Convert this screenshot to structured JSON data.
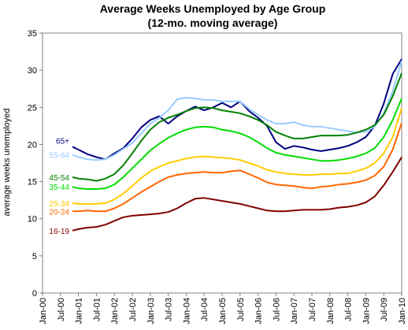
{
  "chart_data": {
    "type": "line",
    "title": "Average Weeks Unemployed by Age Group",
    "subtitle": "(12-mo. moving average)",
    "xlabel": "",
    "ylabel": "average weeks unemployed",
    "ylim": [
      0,
      35
    ],
    "yticks": [
      0,
      5,
      10,
      15,
      20,
      25,
      30,
      35
    ],
    "x_start": "2000-01",
    "x_end": "2010-01",
    "xticks": [
      "Jan-00",
      "Jul-00",
      "Jan-01",
      "Jul-01",
      "Jan-02",
      "Jul-02",
      "Jan-03",
      "Jul-03",
      "Jan-04",
      "Jul-04",
      "Jan-05",
      "Jul-05",
      "Jan-06",
      "Jul-06",
      "Jan-07",
      "Jul-07",
      "Jan-08",
      "Jul-08",
      "Jan-09",
      "Jul-09",
      "Jan-10"
    ],
    "grid": false,
    "legend": "inline-left",
    "x": [
      "2000-11",
      "2001-01",
      "2001-04",
      "2001-07",
      "2001-10",
      "2002-01",
      "2002-04",
      "2002-07",
      "2002-10",
      "2003-01",
      "2003-04",
      "2003-07",
      "2003-10",
      "2004-01",
      "2004-04",
      "2004-07",
      "2004-10",
      "2005-01",
      "2005-04",
      "2005-07",
      "2005-10",
      "2006-01",
      "2006-04",
      "2006-07",
      "2006-10",
      "2007-01",
      "2007-04",
      "2007-07",
      "2007-10",
      "2008-01",
      "2008-04",
      "2008-07",
      "2008-10",
      "2009-01",
      "2009-04",
      "2009-07",
      "2009-10",
      "2010-01"
    ],
    "series": [
      {
        "name": "65+",
        "color": "#000080",
        "values": [
          19.7,
          19.3,
          18.7,
          18.3,
          18.0,
          18.8,
          19.5,
          20.8,
          22.3,
          23.3,
          23.8,
          22.8,
          23.8,
          24.5,
          25.1,
          24.6,
          25.0,
          25.6,
          25.0,
          25.8,
          24.5,
          23.6,
          22.5,
          20.3,
          19.4,
          19.8,
          19.6,
          19.3,
          19.1,
          19.3,
          19.5,
          19.8,
          20.3,
          21.0,
          22.5,
          25.5,
          29.5,
          31.5
        ],
        "label_y": 20.5
      },
      {
        "name": "55-64",
        "color": "#99ccff",
        "values": [
          18.6,
          18.3,
          18.0,
          17.9,
          18.0,
          18.6,
          19.4,
          20.2,
          21.5,
          22.8,
          23.6,
          24.6,
          26.1,
          26.3,
          26.2,
          26.0,
          26.0,
          25.8,
          25.8,
          25.8,
          24.8,
          24.0,
          23.3,
          22.8,
          22.8,
          23.0,
          22.6,
          22.4,
          22.4,
          22.2,
          22.0,
          21.8,
          21.6,
          21.7,
          22.4,
          24.2,
          27.2,
          31.3
        ],
        "label_y": 18.6
      },
      {
        "name": "45-54",
        "color": "#008000",
        "values": [
          15.6,
          15.4,
          15.3,
          15.1,
          15.4,
          16.0,
          17.2,
          18.8,
          20.5,
          22.0,
          23.0,
          23.6,
          24.0,
          24.5,
          24.9,
          25.0,
          24.9,
          24.6,
          24.4,
          24.2,
          23.8,
          23.3,
          22.6,
          21.7,
          21.2,
          20.8,
          20.8,
          21.0,
          21.2,
          21.2,
          21.2,
          21.3,
          21.6,
          22.0,
          22.6,
          24.0,
          26.5,
          29.6
        ],
        "label_y": 15.6
      },
      {
        "name": "35-44",
        "color": "#00dd00",
        "values": [
          14.3,
          14.1,
          14.0,
          14.0,
          14.1,
          14.6,
          15.6,
          16.8,
          18.0,
          19.2,
          20.1,
          20.9,
          21.5,
          22.0,
          22.3,
          22.4,
          22.3,
          22.0,
          21.8,
          21.5,
          21.0,
          20.3,
          19.5,
          18.9,
          18.6,
          18.4,
          18.2,
          18.0,
          17.8,
          17.8,
          17.9,
          18.1,
          18.4,
          18.8,
          19.5,
          21.0,
          23.3,
          26.2
        ],
        "label_y": 14.3
      },
      {
        "name": "25-34",
        "color": "#ffcc00",
        "values": [
          12.1,
          12.0,
          12.0,
          12.0,
          12.1,
          12.6,
          13.4,
          14.4,
          15.5,
          16.4,
          17.0,
          17.5,
          17.8,
          18.1,
          18.3,
          18.4,
          18.3,
          18.2,
          18.1,
          17.9,
          17.5,
          17.1,
          16.6,
          16.3,
          16.1,
          16.0,
          15.9,
          15.9,
          16.0,
          16.0,
          16.1,
          16.1,
          16.4,
          16.8,
          17.5,
          18.8,
          21.0,
          24.9
        ],
        "label_y": 12.1
      },
      {
        "name": "20-24",
        "color": "#ff6600",
        "values": [
          11.0,
          11.0,
          11.1,
          11.0,
          11.0,
          11.4,
          12.0,
          12.8,
          13.6,
          14.3,
          15.0,
          15.6,
          15.9,
          16.1,
          16.2,
          16.3,
          16.2,
          16.2,
          16.4,
          16.5,
          16.0,
          15.5,
          14.9,
          14.6,
          14.5,
          14.4,
          14.2,
          14.1,
          14.3,
          14.4,
          14.6,
          14.7,
          14.9,
          15.2,
          15.8,
          17.0,
          19.3,
          22.9
        ],
        "label_y": 11.0
      },
      {
        "name": "16-19",
        "color": "#800000",
        "values": [
          8.4,
          8.6,
          8.8,
          8.9,
          9.2,
          9.7,
          10.2,
          10.4,
          10.5,
          10.6,
          10.7,
          10.9,
          11.4,
          12.1,
          12.7,
          12.8,
          12.6,
          12.4,
          12.2,
          12.0,
          11.7,
          11.4,
          11.1,
          11.0,
          11.0,
          11.1,
          11.2,
          11.2,
          11.2,
          11.3,
          11.5,
          11.6,
          11.8,
          12.2,
          13.0,
          14.5,
          16.3,
          18.3
        ],
        "label_y": 8.4
      }
    ]
  }
}
